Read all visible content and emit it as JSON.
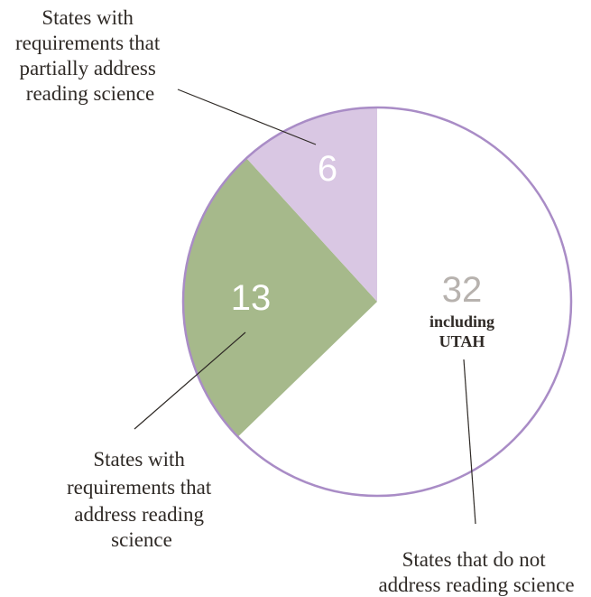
{
  "chart_data": {
    "type": "pie",
    "title": "",
    "slices": [
      {
        "label": "States that do not address reading science",
        "value": 32,
        "note": [
          "including",
          "UTAH"
        ],
        "color": "#ffffff",
        "text_color": "#b7b2ae"
      },
      {
        "label": "States with requirements that address reading science",
        "value": 13,
        "color": "#a6b98b",
        "text_color": "#ffffff"
      },
      {
        "label": "States with requirements that partially address reading science",
        "value": 6,
        "color": "#d9c7e3",
        "text_color": "#ffffff"
      }
    ],
    "outline_color": "#a98cc6",
    "legend": "callouts"
  },
  "callouts": {
    "partial": [
      "States with",
      "requirements that",
      "partially address",
      "reading science"
    ],
    "address": [
      "States with",
      "requirements that",
      "address reading",
      "science"
    ],
    "not": [
      "States that do not",
      "address reading science"
    ]
  }
}
